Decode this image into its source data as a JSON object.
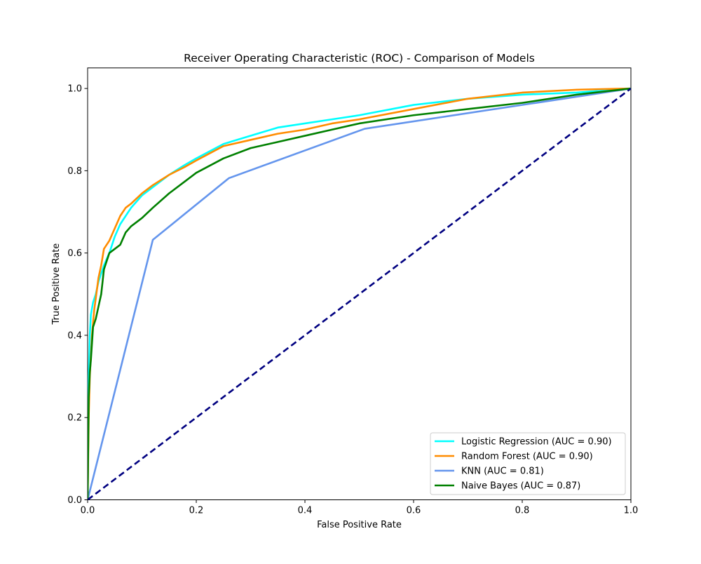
{
  "chart_data": {
    "type": "line",
    "title": "Receiver Operating Characteristic (ROC) - Comparison of Models",
    "xlabel": "False Positive Rate",
    "ylabel": "True Positive Rate",
    "xlim": [
      0.0,
      1.0
    ],
    "ylim": [
      0.0,
      1.05
    ],
    "x_ticks": [
      "0.0",
      "0.2",
      "0.4",
      "0.6",
      "0.8",
      "1.0"
    ],
    "y_ticks": [
      "0.0",
      "0.2",
      "0.4",
      "0.6",
      "0.8",
      "1.0"
    ],
    "grid": false,
    "legend_position": "lower-right",
    "series": [
      {
        "name": "Logistic Regression (AUC = 0.90)",
        "color": "#00ffff",
        "x": [
          0.0,
          0.002,
          0.004,
          0.006,
          0.01,
          0.015,
          0.02,
          0.03,
          0.04,
          0.05,
          0.06,
          0.07,
          0.08,
          0.1,
          0.12,
          0.15,
          0.18,
          0.2,
          0.25,
          0.3,
          0.35,
          0.4,
          0.45,
          0.5,
          0.6,
          0.7,
          0.8,
          0.9,
          1.0
        ],
        "y": [
          0.0,
          0.3,
          0.4,
          0.45,
          0.48,
          0.5,
          0.53,
          0.57,
          0.6,
          0.64,
          0.67,
          0.69,
          0.71,
          0.74,
          0.76,
          0.79,
          0.815,
          0.83,
          0.865,
          0.885,
          0.905,
          0.915,
          0.925,
          0.935,
          0.96,
          0.975,
          0.985,
          0.99,
          1.0
        ]
      },
      {
        "name": "Random Forest (AUC = 0.90)",
        "color": "#ff8c00",
        "x": [
          0.0,
          0.002,
          0.004,
          0.008,
          0.012,
          0.016,
          0.02,
          0.025,
          0.03,
          0.04,
          0.05,
          0.06,
          0.07,
          0.08,
          0.1,
          0.12,
          0.15,
          0.18,
          0.2,
          0.25,
          0.3,
          0.35,
          0.4,
          0.45,
          0.5,
          0.6,
          0.7,
          0.8,
          0.9,
          1.0
        ],
        "y": [
          0.0,
          0.2,
          0.3,
          0.4,
          0.46,
          0.5,
          0.54,
          0.57,
          0.61,
          0.63,
          0.66,
          0.69,
          0.71,
          0.72,
          0.745,
          0.765,
          0.79,
          0.81,
          0.825,
          0.86,
          0.875,
          0.89,
          0.9,
          0.915,
          0.925,
          0.95,
          0.975,
          0.99,
          0.997,
          1.0
        ]
      },
      {
        "name": "KNN (AUC = 0.81)",
        "color": "#6495ed",
        "x": [
          0.0,
          0.12,
          0.26,
          0.51,
          1.0
        ],
        "y": [
          0.0,
          0.632,
          0.782,
          0.902,
          1.0
        ]
      },
      {
        "name": "Naive Bayes (AUC = 0.87)",
        "color": "#008000",
        "x": [
          0.0,
          0.002,
          0.004,
          0.006,
          0.01,
          0.015,
          0.02,
          0.025,
          0.03,
          0.04,
          0.05,
          0.06,
          0.07,
          0.08,
          0.1,
          0.12,
          0.15,
          0.18,
          0.2,
          0.25,
          0.3,
          0.35,
          0.4,
          0.45,
          0.5,
          0.6,
          0.7,
          0.8,
          0.85,
          0.9,
          1.0
        ],
        "y": [
          0.0,
          0.25,
          0.31,
          0.34,
          0.42,
          0.44,
          0.47,
          0.5,
          0.56,
          0.6,
          0.61,
          0.62,
          0.65,
          0.665,
          0.685,
          0.71,
          0.745,
          0.775,
          0.795,
          0.83,
          0.855,
          0.87,
          0.885,
          0.9,
          0.915,
          0.935,
          0.95,
          0.965,
          0.975,
          0.985,
          1.0
        ]
      }
    ],
    "reference_line": {
      "x": [
        0.0,
        1.0
      ],
      "y": [
        0.0,
        1.0
      ],
      "color": "#000080",
      "style": "dashed"
    }
  }
}
